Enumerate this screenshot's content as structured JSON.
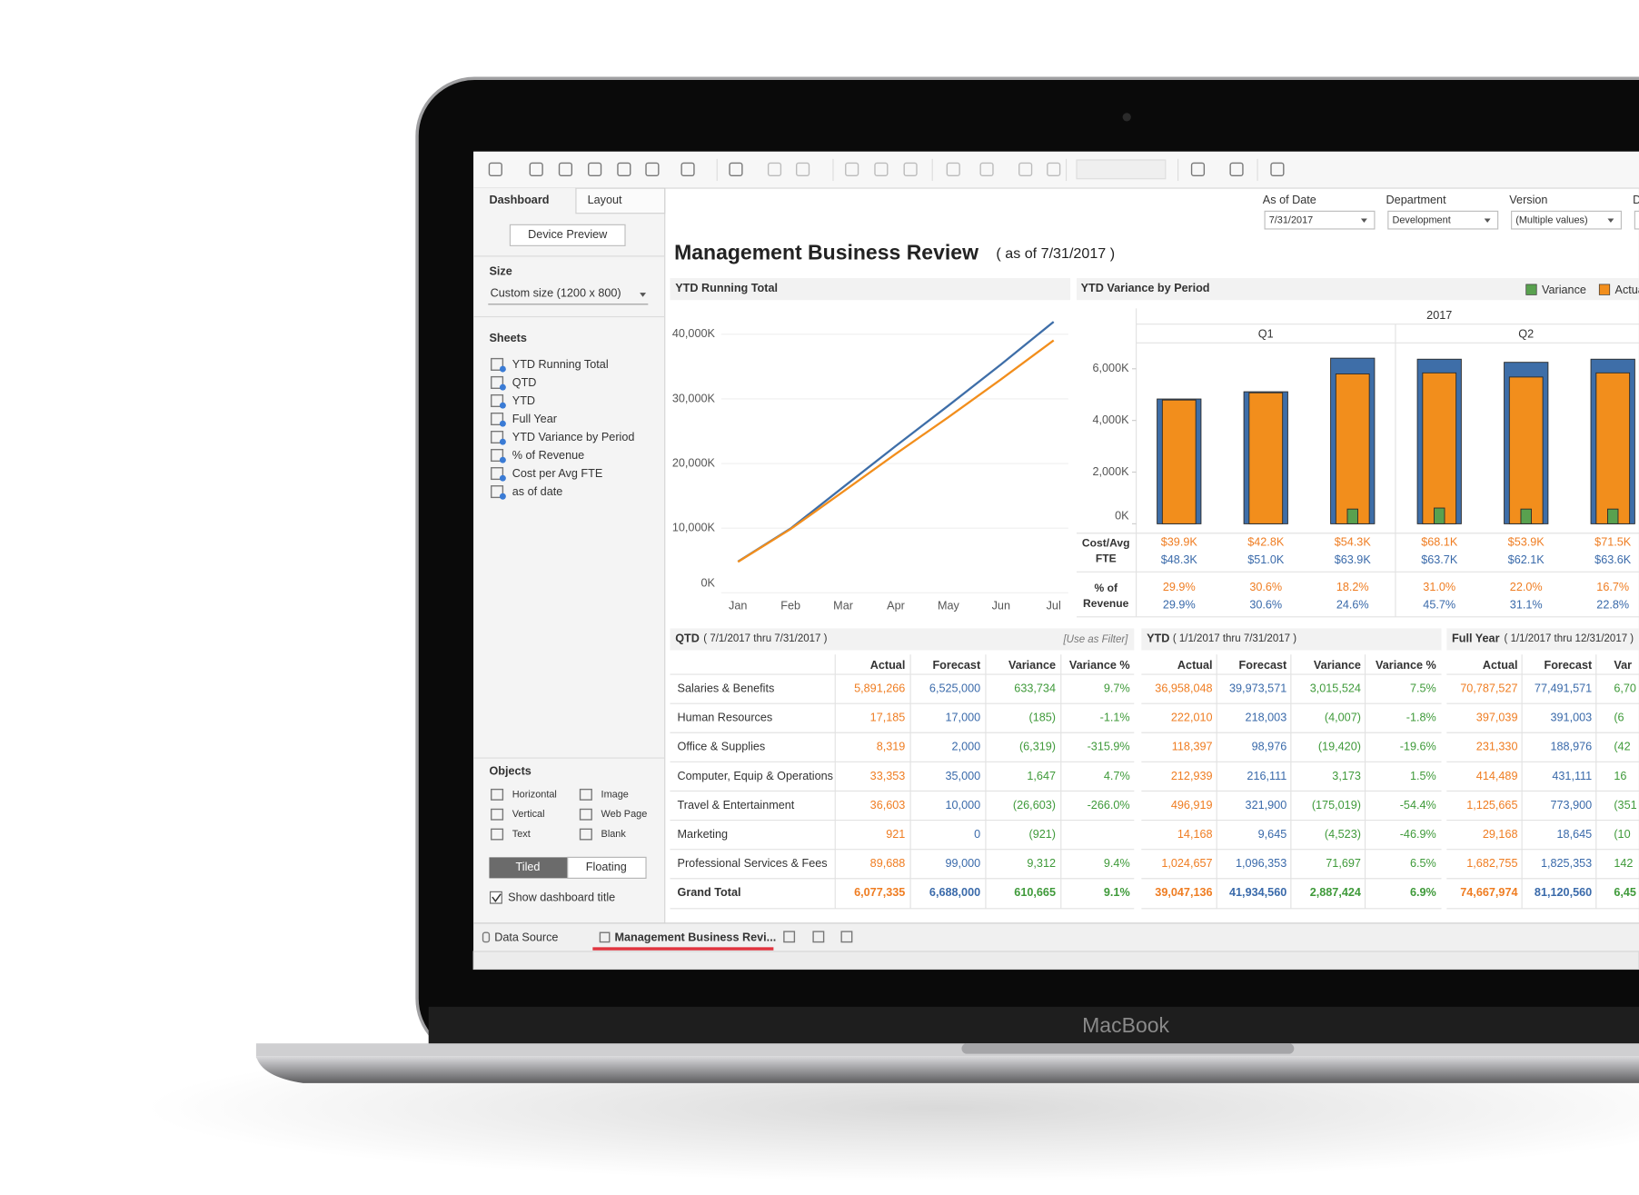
{
  "device_label": "MacBook",
  "side_panel": {
    "tabs": [
      "Dashboard",
      "Layout"
    ],
    "device_preview": "Device Preview",
    "size_label": "Size",
    "size_value": "Custom size (1200 x 800)",
    "sheets_label": "Sheets",
    "sheets": [
      "YTD Running Total",
      "QTD",
      "YTD",
      "Full Year",
      "YTD Variance by Period",
      "% of Revenue",
      "Cost per Avg FTE",
      "as of date"
    ],
    "objects_label": "Objects",
    "objects": [
      "Horizontal",
      "Image",
      "Vertical",
      "Web Page",
      "Text",
      "Blank"
    ],
    "layout_modes": [
      "Tiled",
      "Floating"
    ],
    "show_title": "Show dashboard title"
  },
  "bottom_tabs": [
    "Data Source",
    "Management Business Revi..."
  ],
  "dashboard": {
    "title": "Management Business Review",
    "subtitle": "( as of 7/31/2017 )",
    "filters": [
      {
        "label": "As of Date",
        "value": "7/31/2017"
      },
      {
        "label": "Department",
        "value": "Development"
      },
      {
        "label": "Version",
        "value": "(Multiple values)"
      },
      {
        "label": "D"
      }
    ],
    "line_chart": {
      "type": "line",
      "title": "YTD Running Total",
      "categories": [
        "Jan",
        "Feb",
        "Mar",
        "Apr",
        "May",
        "Jun",
        "Jul"
      ],
      "series": [
        {
          "color": "#3e6ea8",
          "values": [
            4830000,
            9940000,
            16350000,
            22720000,
            28970000,
            35340000,
            41930000
          ]
        },
        {
          "color": "#f28e1c",
          "values": [
            4790000,
            9860000,
            15660000,
            21500000,
            27180000,
            33020000,
            39050000
          ]
        }
      ],
      "ylim": [
        0,
        44000000
      ],
      "yticks": [
        {
          "value": 0,
          "label": "0K"
        },
        {
          "value": 10000000,
          "label": "10,000K"
        },
        {
          "value": 20000000,
          "label": "20,000K"
        },
        {
          "value": 30000000,
          "label": "30,000K"
        },
        {
          "value": 40000000,
          "label": "40,000K"
        }
      ],
      "grid": true
    },
    "bar_chart": {
      "type": "bar",
      "title": "YTD Variance by Period",
      "header": "2017",
      "groups": [
        "Q1",
        "Q2"
      ],
      "categories": [
        null,
        null,
        null,
        null,
        null,
        null
      ],
      "series": [
        {
          "color": "#3e6ea8",
          "values": [
            4830000,
            5110000,
            6410000,
            6370000,
            6250000,
            6370000
          ]
        },
        {
          "name": "Actual",
          "color": "#f28e1c",
          "values": [
            4790000,
            5070000,
            5800000,
            5840000,
            5680000,
            5840000
          ]
        },
        {
          "name": "Variance",
          "color": "#59a14f",
          "values": [
            0,
            0,
            570000,
            610000,
            570000,
            570000
          ]
        }
      ],
      "ylim": [
        0,
        7000000
      ],
      "yticks": [
        {
          "value": 0,
          "label": "0K"
        },
        {
          "value": 2000000,
          "label": "2,000K"
        },
        {
          "value": 4000000,
          "label": "4,000K"
        },
        {
          "value": 6000000,
          "label": "6,000K"
        }
      ],
      "rows": [
        {
          "label": [
            "Cost/Avg",
            "FTE"
          ],
          "actual": [
            "$39.9K",
            "$42.8K",
            "$54.3K",
            "$68.1K",
            "$53.9K",
            "$71.5K"
          ],
          "forecast": [
            "$48.3K",
            "$51.0K",
            "$63.9K",
            "$63.7K",
            "$62.1K",
            "$63.6K"
          ]
        },
        {
          "label": [
            "% of",
            "Revenue"
          ],
          "actual": [
            "29.9%",
            "30.6%",
            "18.2%",
            "31.0%",
            "22.0%",
            "16.7%"
          ],
          "forecast": [
            "29.9%",
            "30.6%",
            "24.6%",
            "45.7%",
            "31.1%",
            "22.8%"
          ]
        }
      ]
    },
    "tables": [
      {
        "title": "QTD",
        "range": "( 7/1/2017 thru 7/31/2017 )",
        "filter_note": "[Use as Filter]",
        "columns": [
          "Actual",
          "Forecast",
          "Variance",
          "Variance %"
        ],
        "rows": [
          {
            "label": "Salaries & Benefits",
            "cells": [
              "5,891,266",
              "6,525,000",
              "633,734",
              "9.7%"
            ]
          },
          {
            "label": "Human Resources",
            "cells": [
              "17,185",
              "17,000",
              "(185)",
              "-1.1%"
            ]
          },
          {
            "label": "Office & Supplies",
            "cells": [
              "8,319",
              "2,000",
              "(6,319)",
              "-315.9%"
            ]
          },
          {
            "label": "Computer, Equip & Operations",
            "cells": [
              "33,353",
              "35,000",
              "1,647",
              "4.7%"
            ]
          },
          {
            "label": "Travel & Entertainment",
            "cells": [
              "36,603",
              "10,000",
              "(26,603)",
              "-266.0%"
            ]
          },
          {
            "label": "Marketing",
            "cells": [
              "921",
              "0",
              "(921)",
              null
            ]
          },
          {
            "label": "Professional Services & Fees",
            "cells": [
              "89,688",
              "99,000",
              "9,312",
              "9.4%"
            ]
          },
          {
            "label": "Grand Total",
            "cells": [
              "6,077,335",
              "6,688,000",
              "610,665",
              "9.1%"
            ]
          }
        ]
      },
      {
        "title": "YTD",
        "range": "( 1/1/2017 thru 7/31/2017 )",
        "columns": [
          "Actual",
          "Forecast",
          "Variance",
          "Variance %"
        ],
        "rows": [
          {
            "cells": [
              "36,958,048",
              "39,973,571",
              "3,015,524",
              "7.5%"
            ]
          },
          {
            "cells": [
              "222,010",
              "218,003",
              "(4,007)",
              "-1.8%"
            ]
          },
          {
            "cells": [
              "118,397",
              "98,976",
              "(19,420)",
              "-19.6%"
            ]
          },
          {
            "cells": [
              "212,939",
              "216,111",
              "3,173",
              "1.5%"
            ]
          },
          {
            "cells": [
              "496,919",
              "321,900",
              "(175,019)",
              "-54.4%"
            ]
          },
          {
            "cells": [
              "14,168",
              "9,645",
              "(4,523)",
              "-46.9%"
            ]
          },
          {
            "cells": [
              "1,024,657",
              "1,096,353",
              "71,697",
              "6.5%"
            ]
          },
          {
            "cells": [
              "39,047,136",
              "41,934,560",
              "2,887,424",
              "6.9%"
            ]
          }
        ]
      },
      {
        "title": "Full Year",
        "range": "( 1/1/2017 thru 12/31/2017 )",
        "columns": [
          "Actual",
          "Forecast",
          "Var"
        ],
        "rows": [
          {
            "cells": [
              "70,787,527",
              "77,491,571",
              "6,70"
            ]
          },
          {
            "cells": [
              "397,039",
              "391,003",
              "(6"
            ]
          },
          {
            "cells": [
              "231,330",
              "188,976",
              "(42"
            ]
          },
          {
            "cells": [
              "414,489",
              "431,111",
              "16"
            ]
          },
          {
            "cells": [
              "1,125,665",
              "773,900",
              "(351"
            ]
          },
          {
            "cells": [
              "29,168",
              "18,645",
              "(10"
            ]
          },
          {
            "cells": [
              "1,682,755",
              "1,825,353",
              "142"
            ]
          },
          {
            "cells": [
              "74,667,974",
              "81,120,560",
              "6,45"
            ]
          }
        ]
      }
    ]
  }
}
